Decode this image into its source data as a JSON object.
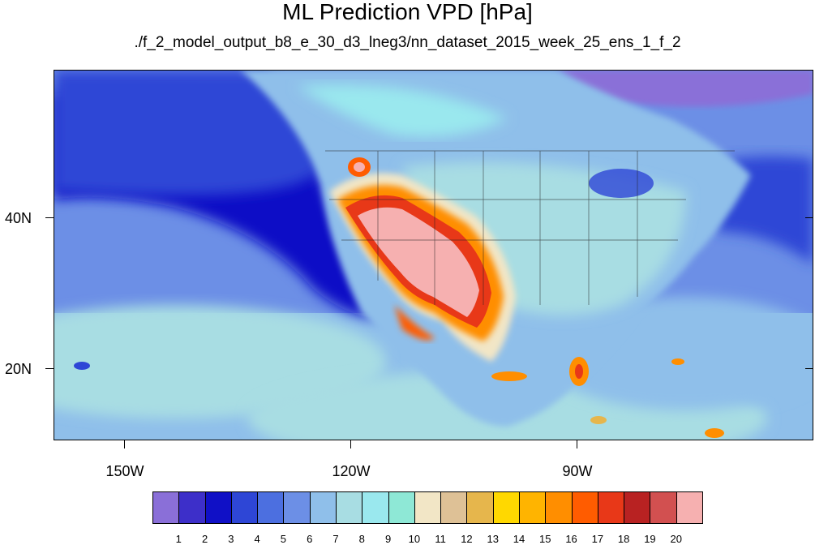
{
  "title": "ML Prediction VPD [hPa]",
  "subtitle": "./f_2_model_output_b8_e_30_d3_lneg3/nn_dataset_2015_week_25_ens_1_f_2",
  "map": {
    "lon_labels": [
      "150W",
      "120W",
      "90W"
    ],
    "lat_labels": [
      "40N",
      "20N"
    ]
  },
  "legend": {
    "labels": [
      "1",
      "2",
      "3",
      "4",
      "5",
      "6",
      "7",
      "8",
      "9",
      "10",
      "11",
      "12",
      "13",
      "14",
      "15",
      "16",
      "17",
      "18",
      "19",
      "20"
    ],
    "colors": [
      "#8a6fd8",
      "#3d2fc9",
      "#1010c6",
      "#2e46d6",
      "#4c6fe0",
      "#6c8fe6",
      "#8fbfea",
      "#a8dde3",
      "#9ae8ee",
      "#8ee8d6",
      "#f2e6c6",
      "#dec196",
      "#e6b64c",
      "#ffd800",
      "#ffb400",
      "#ff8e00",
      "#ff5c00",
      "#e83818",
      "#b82222",
      "#d25050",
      "#f6b0b0"
    ]
  }
}
